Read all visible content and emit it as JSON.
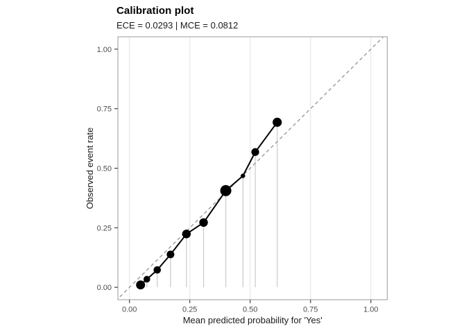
{
  "header": {
    "title": "Calibration plot",
    "subtitle": "ECE = 0.0293 | MCE = 0.0812"
  },
  "metrics": {
    "ece": "0.0293",
    "mce": "0.0812"
  },
  "chart_data": {
    "type": "scatter",
    "title": "Calibration plot",
    "subtitle": "ECE = 0.0293 | MCE = 0.0812",
    "xlabel": "Mean predicted probability for 'Yes'",
    "ylabel": "Observed event rate",
    "xlim": [
      0,
      1
    ],
    "ylim": [
      0,
      1
    ],
    "x_ticks": [
      0.0,
      0.25,
      0.5,
      0.75,
      1.0
    ],
    "y_ticks": [
      0.0,
      0.25,
      0.5,
      0.75,
      1.0
    ],
    "x_tick_labels": [
      "0.00",
      "0.25",
      "0.50",
      "0.75",
      "1.00"
    ],
    "y_tick_labels": [
      "0.00",
      "0.25",
      "0.50",
      "0.75",
      "1.00"
    ],
    "grid": "vertical-major-only",
    "legend": "none",
    "identity_line": {
      "style": "dashed",
      "from": [
        0,
        0
      ],
      "to": [
        1,
        1
      ]
    },
    "drop_lines_to_zero": true,
    "n_bins": 10,
    "points": [
      {
        "x": 0.046,
        "y": 0.01,
        "r": 6.5
      },
      {
        "x": 0.072,
        "y": 0.034,
        "r": 4.8
      },
      {
        "x": 0.115,
        "y": 0.073,
        "r": 5.3
      },
      {
        "x": 0.17,
        "y": 0.138,
        "r": 5.5
      },
      {
        "x": 0.236,
        "y": 0.224,
        "r": 6.2
      },
      {
        "x": 0.307,
        "y": 0.272,
        "r": 6.2
      },
      {
        "x": 0.399,
        "y": 0.406,
        "r": 8.0
      },
      {
        "x": 0.47,
        "y": 0.468,
        "r": 3.2
      },
      {
        "x": 0.521,
        "y": 0.568,
        "r": 5.6
      },
      {
        "x": 0.612,
        "y": 0.693,
        "r": 6.6
      }
    ],
    "colors": {
      "point": "#000000",
      "series_line": "#000000",
      "identity": "#999999",
      "grid": "#e3e3e3",
      "drop_line": "#c9c9c9",
      "panel_border": "#aaaaaa",
      "tick": "#333333",
      "tick_label": "#4d4d4d",
      "axis_title": "#1a1a1a",
      "background": "#ffffff"
    }
  }
}
